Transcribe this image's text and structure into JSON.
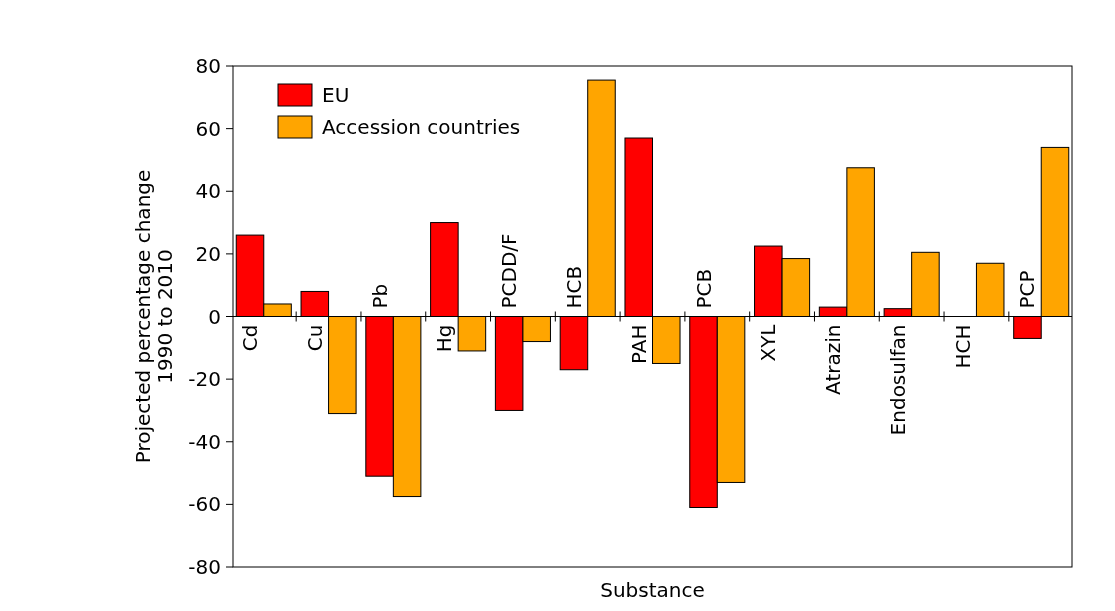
{
  "chart_data": {
    "type": "bar",
    "xlabel": "Substance",
    "ylabel": "Projected percentage change\n1990 to 2010",
    "categories": [
      "Cd",
      "Cu",
      "Pb",
      "Hg",
      "PCDD/F",
      "HCB",
      "PAH",
      "PCB",
      "XYL",
      "Atrazin",
      "Endosulfan",
      "HCH",
      "PCP"
    ],
    "series": [
      {
        "name": "EU",
        "color": "#ff0000",
        "values": [
          26,
          8,
          -51,
          30,
          -30,
          -17,
          57,
          -61,
          22.5,
          3,
          2.5,
          null,
          -7
        ]
      },
      {
        "name": "Accession countries",
        "color": "#ffa500",
        "values": [
          4,
          -31,
          -57.5,
          -11,
          -8,
          75.5,
          -15,
          -53,
          18.5,
          47.5,
          20.5,
          17,
          54
        ]
      }
    ],
    "ylim": [
      -80,
      80
    ],
    "yticks": [
      -80,
      -60,
      -40,
      -20,
      0,
      20,
      40,
      60,
      80
    ],
    "grid": false,
    "legend": "top left"
  }
}
